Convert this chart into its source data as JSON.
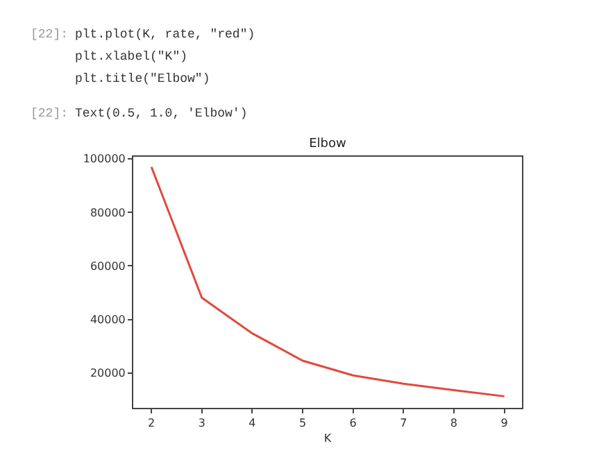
{
  "chart_data": {
    "type": "line",
    "title": "Elbow",
    "xlabel": "K",
    "x": [
      2,
      3,
      4,
      5,
      6,
      7,
      8,
      9
    ],
    "series": [
      {
        "color": "#e04a3c",
        "values": [
          96900,
          48100,
          34800,
          24600,
          19100,
          16000,
          13600,
          11300
        ]
      }
    ],
    "xlim": [
      1.64,
      9.35
    ],
    "xticks": [
      2,
      3,
      4,
      5,
      6,
      7,
      8,
      9
    ],
    "ylim": [
      7000,
      100700
    ],
    "yticks": [
      20000,
      40000,
      60000,
      80000,
      100000
    ],
    "marker": "none",
    "line_style": "solid",
    "annotations": [
      "[22]:",
      "plt.plot(K, rate, \"red\")",
      "plt.xlabel(\"K\")",
      "plt.title(\"Elbow\")",
      "[22]:",
      "Text(0.5, 1.0, 'Elbow')"
    ]
  }
}
